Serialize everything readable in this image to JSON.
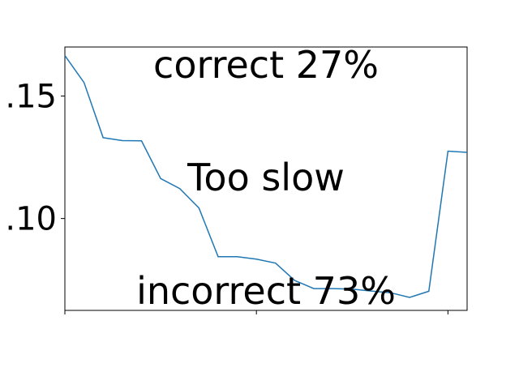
{
  "chart_data": {
    "type": "line",
    "title": "",
    "xlabel": "",
    "ylabel": "",
    "x": [
      0,
      1,
      2,
      3,
      4,
      5,
      6,
      7,
      8,
      9,
      10,
      11,
      12,
      13,
      14,
      15,
      16,
      17,
      18,
      19,
      20,
      21
    ],
    "y_tick_labels": [
      ".15",
      ".10"
    ],
    "y_tick_values": [
      0.15,
      0.1
    ],
    "ylim": [
      0.0625,
      0.17
    ],
    "xlim": [
      0,
      21
    ],
    "x_ticks": [
      0,
      10,
      20
    ],
    "series": [
      {
        "color": "#1f77b4",
        "values": [
          0.1665,
          0.1555,
          0.133,
          0.1318,
          0.1317,
          0.1163,
          0.1122,
          0.1043,
          0.0844,
          0.0844,
          0.0834,
          0.0818,
          0.0747,
          0.0714,
          0.0714,
          0.0712,
          0.0704,
          0.0697,
          0.0678,
          0.0703,
          0.1275,
          0.127
        ]
      }
    ],
    "annotations": {
      "top": "correct 27%",
      "middle": "Too slow",
      "bottom": "incorrect 73%"
    },
    "grid": false,
    "legend": "none"
  }
}
